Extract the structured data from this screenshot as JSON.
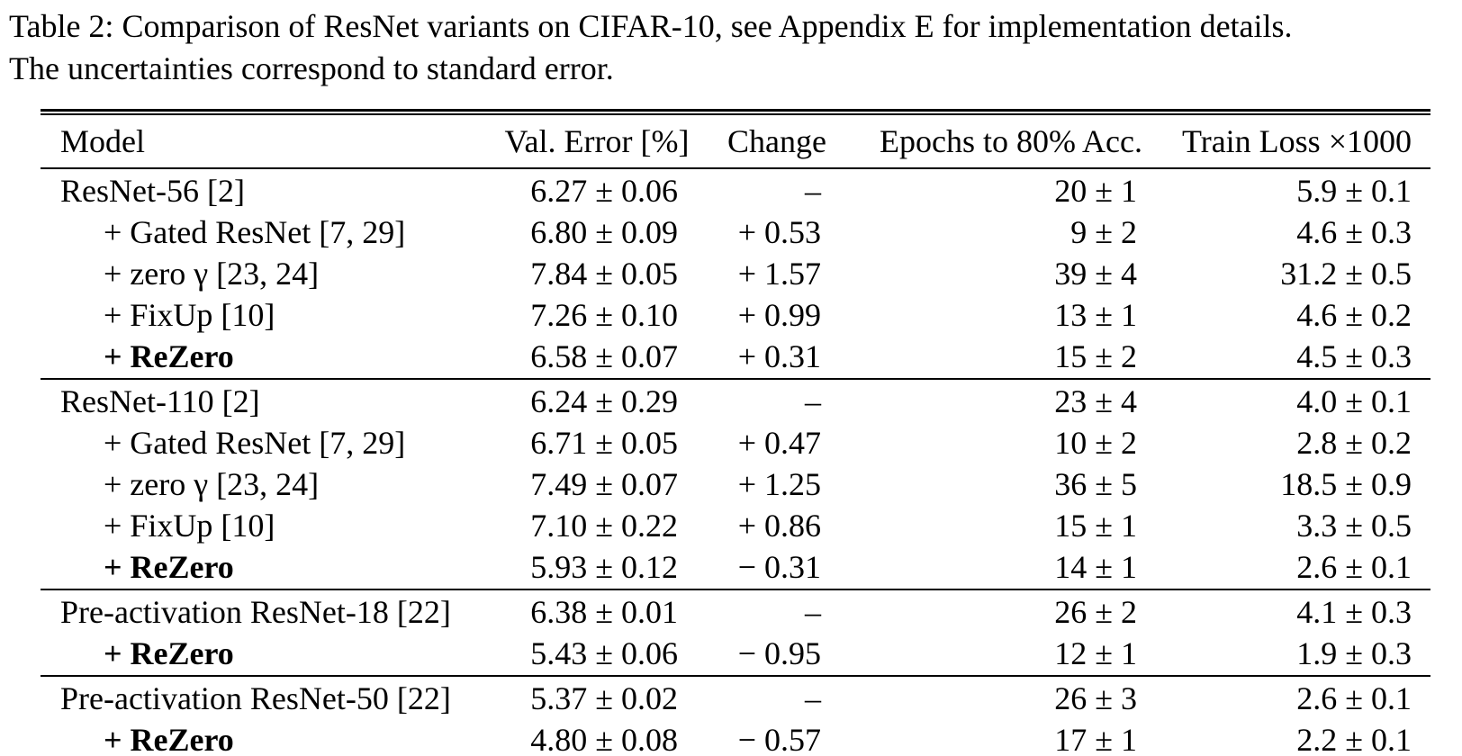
{
  "caption": {
    "line1": "Table 2: Comparison of ResNet variants on CIFAR-10, see Appendix E for implementation details.",
    "line2": "The uncertainties correspond to standard error."
  },
  "table": {
    "columns": [
      "Model",
      "Val. Error [%]",
      "Change",
      "Epochs to 80% Acc.",
      "Train Loss ×1000"
    ],
    "sections": [
      {
        "rows": [
          {
            "model": "ResNet-56 [2]",
            "indent": false,
            "bold": false,
            "val_error": "6.27 ± 0.06",
            "change": "–",
            "epochs": "20 ± 1",
            "train_loss": "5.9 ± 0.1"
          },
          {
            "model": "+ Gated ResNet [7, 29]",
            "indent": true,
            "bold": false,
            "val_error": "6.80 ± 0.09",
            "change": "+ 0.53",
            "epochs": "9 ± 2",
            "train_loss": "4.6 ± 0.3"
          },
          {
            "model": "+ zero γ [23, 24]",
            "indent": true,
            "bold": false,
            "val_error": "7.84 ± 0.05",
            "change": "+ 1.57",
            "epochs": "39 ± 4",
            "train_loss": "31.2 ± 0.5"
          },
          {
            "model": "+ FixUp [10]",
            "indent": true,
            "bold": false,
            "val_error": "7.26 ± 0.10",
            "change": "+ 0.99",
            "epochs": "13 ± 1",
            "train_loss": "4.6 ± 0.2"
          },
          {
            "model": "+ ReZero",
            "indent": true,
            "bold": true,
            "val_error": "6.58 ± 0.07",
            "change": "+ 0.31",
            "epochs": "15 ± 2",
            "train_loss": "4.5 ± 0.3"
          }
        ]
      },
      {
        "rows": [
          {
            "model": "ResNet-110 [2]",
            "indent": false,
            "bold": false,
            "val_error": "6.24 ± 0.29",
            "change": "–",
            "epochs": "23 ± 4",
            "train_loss": "4.0 ± 0.1"
          },
          {
            "model": "+ Gated ResNet [7, 29]",
            "indent": true,
            "bold": false,
            "val_error": "6.71 ± 0.05",
            "change": "+ 0.47",
            "epochs": "10 ± 2",
            "train_loss": "2.8 ± 0.2"
          },
          {
            "model": "+ zero γ [23, 24]",
            "indent": true,
            "bold": false,
            "val_error": "7.49 ± 0.07",
            "change": "+ 1.25",
            "epochs": "36 ± 5",
            "train_loss": "18.5 ± 0.9"
          },
          {
            "model": "+ FixUp [10]",
            "indent": true,
            "bold": false,
            "val_error": "7.10 ± 0.22",
            "change": "+ 0.86",
            "epochs": "15 ± 1",
            "train_loss": "3.3 ± 0.5"
          },
          {
            "model": "+ ReZero",
            "indent": true,
            "bold": true,
            "val_error": "5.93 ± 0.12",
            "change": "− 0.31",
            "epochs": "14 ± 1",
            "train_loss": "2.6 ± 0.1"
          }
        ]
      },
      {
        "rows": [
          {
            "model": "Pre-activation ResNet-18 [22]",
            "indent": false,
            "bold": false,
            "val_error": "6.38 ± 0.01",
            "change": "–",
            "epochs": "26 ± 2",
            "train_loss": "4.1 ± 0.3"
          },
          {
            "model": "+ ReZero",
            "indent": true,
            "bold": true,
            "val_error": "5.43 ± 0.06",
            "change": "− 0.95",
            "epochs": "12 ± 1",
            "train_loss": "1.9 ± 0.3"
          }
        ]
      },
      {
        "rows": [
          {
            "model": "Pre-activation ResNet-50 [22]",
            "indent": false,
            "bold": false,
            "val_error": "5.37 ± 0.02",
            "change": "–",
            "epochs": "26 ± 3",
            "train_loss": "2.6 ± 0.1"
          },
          {
            "model": "+ ReZero",
            "indent": true,
            "bold": true,
            "val_error": "4.80 ± 0.08",
            "change": "− 0.57",
            "epochs": "17 ± 1",
            "train_loss": "2.2 ± 0.1"
          }
        ]
      }
    ]
  }
}
